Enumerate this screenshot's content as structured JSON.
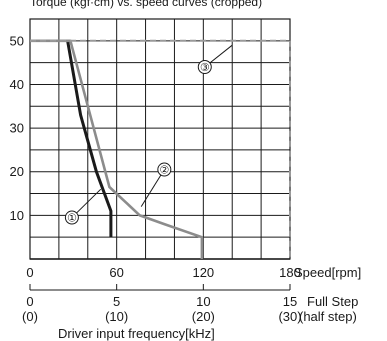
{
  "chart_data": {
    "type": "line",
    "title": "",
    "top_caption": "Torque (kgf·cm) vs. speed curves (cropped)",
    "xlabel": "Speed[rpm]",
    "xlim": [
      0,
      180
    ],
    "x_ticks": [
      0,
      60,
      120,
      180
    ],
    "ylim": [
      0,
      55
    ],
    "y_ticks": [
      10,
      20,
      30,
      40,
      50
    ],
    "grid": true,
    "secondary_axis": {
      "label_line1": "Full Step",
      "label_line2": "(half step)",
      "ticks_full": [
        "0",
        "5",
        "10",
        "15"
      ],
      "ticks_half": [
        "(0)",
        "(10)",
        "(20)",
        "(30)"
      ],
      "caption": "Driver input frequency[kHz]"
    },
    "series": [
      {
        "name": "①",
        "color": "#1a1a1a",
        "style": "solid",
        "x": [
          26,
          35,
          46,
          56,
          56
        ],
        "y": [
          50,
          33,
          20,
          11,
          5
        ]
      },
      {
        "name": "②",
        "color": "#8c8c8c",
        "style": "solid",
        "x": [
          0,
          28,
          55,
          76,
          93,
          119,
          119
        ],
        "y": [
          50,
          50,
          16.5,
          10,
          8,
          5,
          0
        ]
      },
      {
        "name": "③",
        "color": "#9a9a9a",
        "style": "dashed",
        "x": [
          0,
          180,
          180
        ],
        "y": [
          50,
          50,
          0
        ]
      }
    ],
    "markers": [
      {
        "label": "①",
        "at": [
          29,
          9.5
        ],
        "leader_to": [
          49,
          16
        ]
      },
      {
        "label": "②",
        "at": [
          93,
          20.5
        ],
        "leader_to": [
          77,
          12
        ]
      },
      {
        "label": "③",
        "at": [
          121,
          44
        ],
        "leader_to": [
          140,
          49
        ]
      }
    ]
  }
}
